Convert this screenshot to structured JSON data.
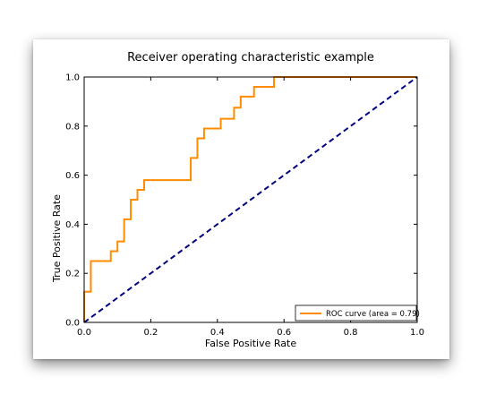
{
  "chart_data": {
    "type": "line",
    "title": "Receiver operating characteristic example",
    "xlabel": "False Positive Rate",
    "ylabel": "True Positive Rate",
    "xlim": [
      0.0,
      1.0
    ],
    "ylim": [
      0.0,
      1.0
    ],
    "xticks": [
      "0.0",
      "0.2",
      "0.4",
      "0.6",
      "0.8",
      "1.0"
    ],
    "yticks": [
      "0.0",
      "0.2",
      "0.4",
      "0.6",
      "0.8",
      "1.0"
    ],
    "grid": false,
    "legend_position": "bottom-right",
    "series": [
      {
        "name": "ROC curve (area = 0.79)",
        "color": "#ff8c00",
        "style": "solid",
        "x": [
          0.0,
          0.0,
          0.02,
          0.02,
          0.08,
          0.08,
          0.1,
          0.1,
          0.12,
          0.12,
          0.14,
          0.14,
          0.16,
          0.16,
          0.18,
          0.18,
          0.32,
          0.32,
          0.34,
          0.34,
          0.36,
          0.36,
          0.41,
          0.41,
          0.45,
          0.45,
          0.47,
          0.47,
          0.51,
          0.51,
          0.57,
          0.57,
          1.0
        ],
        "y": [
          0.0,
          0.125,
          0.125,
          0.25,
          0.25,
          0.29,
          0.29,
          0.33,
          0.33,
          0.42,
          0.42,
          0.5,
          0.5,
          0.54,
          0.54,
          0.58,
          0.58,
          0.67,
          0.67,
          0.75,
          0.75,
          0.79,
          0.79,
          0.83,
          0.83,
          0.875,
          0.875,
          0.92,
          0.92,
          0.96,
          0.96,
          1.0,
          1.0
        ]
      },
      {
        "name": "",
        "color": "#000080",
        "style": "dashed",
        "x": [
          0.0,
          1.0
        ],
        "y": [
          0.0,
          1.0
        ]
      }
    ]
  }
}
